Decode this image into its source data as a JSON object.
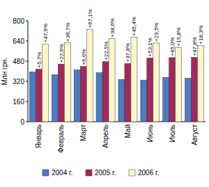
{
  "chart_data": {
    "type": "bar",
    "y_label": "Млн грн.",
    "categories": [
      "Январь",
      "Февраль",
      "Март",
      "Апрель",
      "Май",
      "Июнь",
      "Июль",
      "Август"
    ],
    "series": [
      {
        "name": "2004 г.",
        "color": "#4a7cc4",
        "values": [
          395,
          373,
          411,
          388,
          335,
          330,
          350,
          345
        ]
      },
      {
        "name": "2005 г.",
        "color": "#a3285c",
        "values": [
          417,
          457,
          438,
          476,
          462,
          505,
          508,
          510
        ],
        "annotations": [
          "+5,7%",
          "+22,6%",
          "+6,6%",
          "+22,5%",
          "+37,8%",
          "+53,1%",
          "+45,0%",
          "+47,8%"
        ]
      },
      {
        "name": "2006 г.",
        "color": "#fff6cc",
        "values": [
          617,
          625,
          732,
          660,
          671,
          624,
          588,
          603
        ],
        "annotations": [
          "+47,9%",
          "+36,7%",
          "+67,1%",
          "+38,6%",
          "+45,4%",
          "+23,5%",
          "+15,8%",
          "+18,3%"
        ]
      }
    ],
    "ylim": [
      0,
      800
    ],
    "yticks": [
      0,
      160,
      320,
      480,
      640,
      800
    ],
    "grid": false,
    "legend": "bottom"
  }
}
